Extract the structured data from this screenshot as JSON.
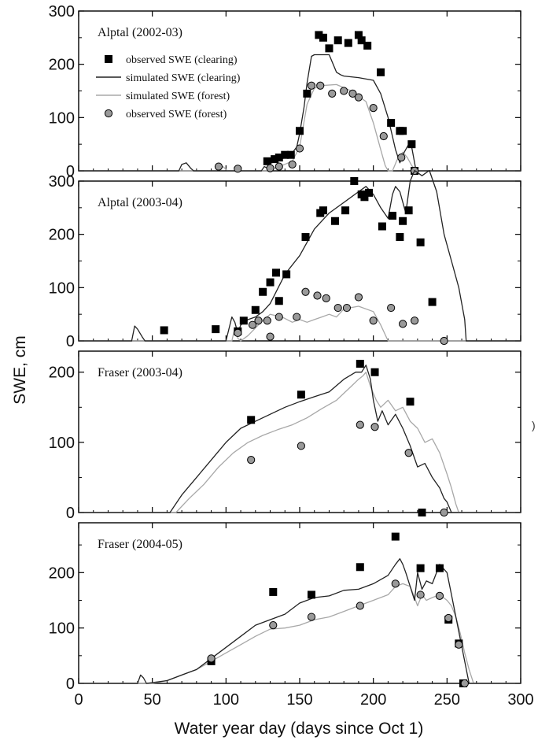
{
  "xlabel": "Water year day (days since Oct 1)",
  "ylabel": "SWE, cm",
  "stray_mark": ")",
  "x_ticks": [
    "0",
    "50",
    "100",
    "150",
    "200",
    "250",
    "300"
  ],
  "colors": {
    "clearing_line": "#222222",
    "forest_line": "#a8a8a8",
    "clearing_marker": "#000000",
    "forest_marker": "#9a9a9a"
  },
  "chart_data": [
    {
      "type": "line",
      "title": "Alptal (2002-03)",
      "xlim": [
        0,
        300
      ],
      "ylim": [
        0,
        300
      ],
      "y_ticks": [
        "0",
        "100",
        "200",
        "300"
      ],
      "legend_position": "top-left",
      "legend": [
        "observed SWE (clearing)",
        "simulated SWE (clearing)",
        "simulated SWE (forest)",
        "observed SWE (forest)"
      ],
      "series": [
        {
          "name": "simulated SWE (clearing)",
          "kind": "line",
          "x": [
            0,
            68,
            70,
            73,
            76,
            78,
            100,
            124,
            126,
            128,
            130,
            134,
            140,
            144,
            148,
            150,
            153,
            155,
            158,
            160,
            163,
            170,
            175,
            178,
            180,
            190,
            200,
            205,
            210,
            215,
            218,
            220,
            224,
            226,
            229,
            300
          ],
          "y": [
            0,
            0,
            12,
            15,
            5,
            0,
            0,
            0,
            8,
            5,
            14,
            18,
            25,
            30,
            45,
            70,
            120,
            165,
            215,
            218,
            218,
            218,
            185,
            180,
            178,
            175,
            170,
            145,
            100,
            40,
            15,
            30,
            50,
            45,
            0,
            0
          ]
        },
        {
          "name": "simulated SWE (forest)",
          "kind": "line",
          "x": [
            0,
            95,
            98,
            101,
            130,
            134,
            138,
            145,
            150,
            155,
            160,
            165,
            175,
            185,
            195,
            200,
            205,
            208,
            210,
            213,
            216,
            218,
            220,
            223,
            226,
            229,
            300
          ],
          "y": [
            0,
            0,
            8,
            0,
            0,
            7,
            10,
            18,
            45,
            125,
            155,
            160,
            162,
            150,
            130,
            90,
            40,
            10,
            0,
            0,
            20,
            28,
            35,
            25,
            10,
            0,
            0
          ]
        },
        {
          "name": "observed SWE (clearing)",
          "kind": "scatter",
          "marker": "square",
          "x": [
            128,
            133,
            136,
            140,
            144,
            150,
            155,
            163,
            166,
            170,
            176,
            183,
            190,
            192,
            196,
            205,
            212,
            218,
            220,
            226,
            228
          ],
          "y": [
            18,
            22,
            25,
            30,
            30,
            75,
            145,
            255,
            250,
            230,
            245,
            240,
            255,
            245,
            235,
            185,
            90,
            75,
            75,
            50,
            0
          ]
        },
        {
          "name": "observed SWE (forest)",
          "kind": "scatter",
          "marker": "circle",
          "x": [
            95,
            108,
            130,
            136,
            145,
            150,
            158,
            164,
            172,
            180,
            186,
            190,
            200,
            207,
            219,
            228
          ],
          "y": [
            8,
            4,
            5,
            8,
            12,
            42,
            160,
            160,
            145,
            150,
            145,
            138,
            118,
            65,
            25,
            0
          ]
        }
      ]
    },
    {
      "type": "line",
      "title": "Alptal (2003-04)",
      "xlim": [
        0,
        300
      ],
      "ylim": [
        0,
        300
      ],
      "y_ticks": [
        "0",
        "100",
        "200",
        "300"
      ],
      "series": [
        {
          "name": "simulated SWE (clearing)",
          "kind": "line",
          "x": [
            0,
            36,
            38,
            40,
            43,
            45,
            90,
            100,
            104,
            106,
            108,
            110,
            115,
            120,
            125,
            130,
            140,
            150,
            160,
            170,
            180,
            190,
            195,
            200,
            205,
            210,
            213,
            215,
            218,
            222,
            225,
            228,
            233,
            238,
            243,
            248,
            253,
            258,
            262,
            263,
            300
          ],
          "y": [
            0,
            0,
            28,
            22,
            8,
            0,
            0,
            0,
            45,
            35,
            15,
            30,
            40,
            45,
            55,
            70,
            125,
            160,
            210,
            240,
            260,
            280,
            290,
            275,
            250,
            230,
            275,
            290,
            280,
            240,
            300,
            320,
            310,
            320,
            280,
            200,
            150,
            100,
            40,
            0,
            0
          ]
        },
        {
          "name": "simulated SWE (forest)",
          "kind": "line",
          "x": [
            0,
            104,
            106,
            108,
            110,
            115,
            122,
            130,
            138,
            145,
            150,
            155,
            160,
            165,
            170,
            175,
            180,
            190,
            200,
            205,
            210,
            300
          ],
          "y": [
            0,
            0,
            25,
            5,
            0,
            10,
            30,
            50,
            45,
            35,
            40,
            35,
            40,
            45,
            50,
            45,
            60,
            65,
            55,
            30,
            0,
            0
          ]
        },
        {
          "name": "observed SWE (clearing)",
          "kind": "scatter",
          "marker": "square",
          "x": [
            58,
            93,
            108,
            112,
            120,
            125,
            130,
            134,
            136,
            141,
            154,
            164,
            166,
            174,
            181,
            187,
            192,
            194,
            197,
            206,
            213,
            218,
            220,
            224,
            232,
            240
          ],
          "y": [
            20,
            22,
            18,
            38,
            58,
            92,
            110,
            128,
            75,
            125,
            195,
            240,
            245,
            225,
            245,
            300,
            275,
            270,
            278,
            215,
            235,
            195,
            225,
            245,
            185,
            73
          ]
        },
        {
          "name": "observed SWE (forest)",
          "kind": "scatter",
          "marker": "circle",
          "x": [
            108,
            118,
            122,
            128,
            130,
            136,
            148,
            154,
            162,
            168,
            176,
            182,
            190,
            200,
            212,
            220,
            228,
            248
          ],
          "y": [
            15,
            30,
            38,
            38,
            8,
            45,
            45,
            92,
            85,
            80,
            62,
            62,
            82,
            38,
            62,
            32,
            38,
            0
          ]
        }
      ]
    },
    {
      "type": "line",
      "title": "Fraser (2003-04)",
      "xlim": [
        0,
        300
      ],
      "ylim": [
        0,
        230
      ],
      "y_ticks": [
        "0",
        "100",
        "200"
      ],
      "series": [
        {
          "name": "simulated SWE (clearing)",
          "kind": "line",
          "x": [
            0,
            62,
            70,
            80,
            90,
            100,
            110,
            120,
            130,
            140,
            150,
            160,
            170,
            180,
            188,
            192,
            195,
            198,
            200,
            203,
            206,
            210,
            215,
            220,
            225,
            230,
            235,
            240,
            245,
            248,
            250,
            253,
            300
          ],
          "y": [
            0,
            0,
            25,
            50,
            75,
            100,
            120,
            130,
            140,
            150,
            158,
            165,
            172,
            190,
            200,
            200,
            210,
            190,
            160,
            130,
            145,
            125,
            140,
            120,
            95,
            65,
            70,
            50,
            35,
            20,
            15,
            0,
            0
          ]
        },
        {
          "name": "simulated SWE (forest)",
          "kind": "line",
          "x": [
            0,
            66,
            75,
            85,
            95,
            105,
            115,
            125,
            135,
            145,
            155,
            165,
            175,
            185,
            190,
            193,
            195,
            198,
            202,
            205,
            210,
            215,
            220,
            225,
            230,
            235,
            240,
            245,
            250,
            253,
            256,
            258,
            300
          ],
          "y": [
            0,
            0,
            20,
            40,
            65,
            85,
            100,
            110,
            118,
            125,
            135,
            148,
            160,
            180,
            190,
            195,
            200,
            180,
            160,
            150,
            160,
            145,
            150,
            130,
            120,
            100,
            105,
            85,
            55,
            35,
            12,
            0,
            0
          ]
        },
        {
          "name": "observed SWE (clearing)",
          "kind": "scatter",
          "marker": "square",
          "x": [
            117,
            151,
            191,
            201,
            225,
            233
          ],
          "y": [
            132,
            168,
            212,
            200,
            158,
            0
          ]
        },
        {
          "name": "observed SWE (forest)",
          "kind": "scatter",
          "marker": "circle",
          "x": [
            117,
            151,
            191,
            201,
            224,
            248
          ],
          "y": [
            75,
            95,
            125,
            122,
            85,
            0
          ]
        }
      ]
    },
    {
      "type": "line",
      "title": "Fraser (2004-05)",
      "xlim": [
        0,
        300
      ],
      "ylim": [
        0,
        290
      ],
      "y_ticks": [
        "0",
        "100",
        "200"
      ],
      "series": [
        {
          "name": "simulated SWE (clearing)",
          "kind": "line",
          "x": [
            0,
            40,
            42,
            44,
            46,
            60,
            70,
            80,
            90,
            100,
            110,
            120,
            130,
            140,
            150,
            160,
            170,
            180,
            190,
            200,
            210,
            215,
            218,
            220,
            222,
            225,
            228,
            230,
            233,
            236,
            240,
            245,
            250,
            253,
            256,
            259,
            262,
            265,
            300
          ],
          "y": [
            0,
            0,
            15,
            10,
            0,
            5,
            15,
            25,
            45,
            65,
            85,
            105,
            115,
            125,
            145,
            155,
            158,
            168,
            170,
            180,
            195,
            215,
            225,
            215,
            200,
            175,
            150,
            200,
            170,
            185,
            180,
            215,
            200,
            160,
            120,
            80,
            40,
            0,
            0
          ]
        },
        {
          "name": "simulated SWE (forest)",
          "kind": "line",
          "x": [
            0,
            50,
            60,
            70,
            80,
            90,
            100,
            110,
            120,
            130,
            140,
            150,
            160,
            170,
            180,
            190,
            200,
            210,
            215,
            220,
            225,
            228,
            230,
            233,
            236,
            240,
            245,
            250,
            253,
            256,
            259,
            262,
            265,
            268,
            300
          ],
          "y": [
            0,
            0,
            5,
            15,
            25,
            40,
            55,
            70,
            85,
            98,
            100,
            105,
            115,
            120,
            130,
            140,
            150,
            160,
            175,
            180,
            175,
            155,
            140,
            160,
            150,
            155,
            160,
            150,
            140,
            120,
            90,
            55,
            25,
            0,
            0
          ]
        },
        {
          "name": "observed SWE (clearing)",
          "kind": "scatter",
          "marker": "square",
          "x": [
            90,
            132,
            158,
            191,
            215,
            232,
            245,
            251,
            258,
            261
          ],
          "y": [
            40,
            165,
            160,
            210,
            265,
            208,
            208,
            115,
            72,
            0
          ]
        },
        {
          "name": "observed SWE (forest)",
          "kind": "scatter",
          "marker": "circle",
          "x": [
            90,
            132,
            158,
            191,
            215,
            232,
            245,
            251,
            258,
            262
          ],
          "y": [
            45,
            105,
            120,
            140,
            180,
            160,
            158,
            118,
            70,
            0
          ]
        }
      ]
    }
  ]
}
